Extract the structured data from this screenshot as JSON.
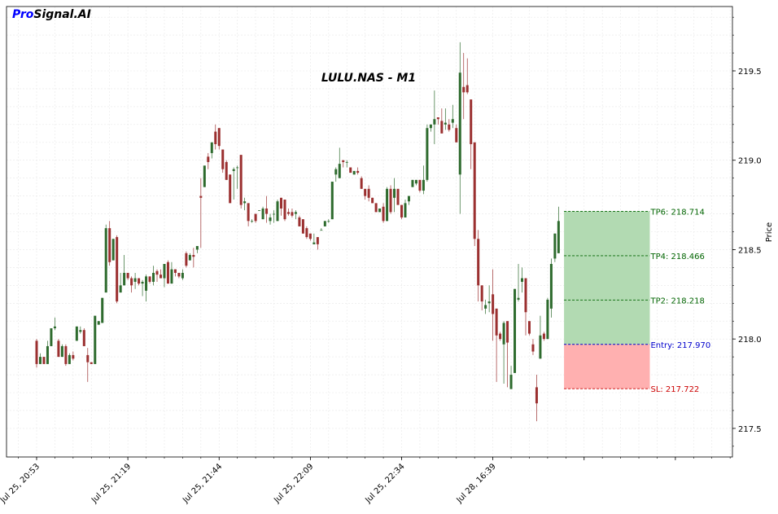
{
  "brand": {
    "part1": "Pro",
    "part2": "Signal.AI"
  },
  "chart_data": {
    "type": "candlestick",
    "title": "LULU.NAS - M1",
    "ylabel": "Price",
    "xlabel": "",
    "ylim": [
      217.34,
      219.86
    ],
    "y_ticks": [
      217.5,
      218.0,
      218.5,
      219.0,
      219.5
    ],
    "y_tick_labels": [
      "217.5",
      "218.0",
      "218.5",
      "219.0",
      "219.5"
    ],
    "x_tick_labels": [
      "Jul 25, 20:53",
      "Jul 25, 21:19",
      "Jul 25, 21:44",
      "Jul 25, 22:09",
      "Jul 25, 22:34",
      "Jul 28, 16:39"
    ],
    "x_tick_indices": [
      0,
      25,
      50,
      75,
      100,
      125
    ],
    "grid": true,
    "colors": {
      "up": "#2e6b2e",
      "down": "#9b3030",
      "tp_zone": "#b2dab2",
      "sl_zone": "#ffb0b0",
      "tp_line": "#006400",
      "entry_line": "#0000cc",
      "sl_line": "#cc0000"
    },
    "candles": [
      [
        217.99,
        218.0,
        217.84,
        217.86
      ],
      [
        217.86,
        217.92,
        217.86,
        217.9
      ],
      [
        217.9,
        217.9,
        217.86,
        217.86
      ],
      [
        217.86,
        217.99,
        217.86,
        217.96
      ],
      [
        217.96,
        218.06,
        217.96,
        218.06
      ],
      [
        218.06,
        218.12,
        218.05,
        218.07
      ],
      [
        217.99,
        218.0,
        217.9,
        217.9
      ],
      [
        217.9,
        217.97,
        217.9,
        217.96
      ],
      [
        217.96,
        217.97,
        217.85,
        217.86
      ],
      [
        217.86,
        217.92,
        217.86,
        217.91
      ],
      [
        217.91,
        217.93,
        217.88,
        217.89
      ],
      [
        217.99,
        218.07,
        217.99,
        218.07
      ],
      [
        218.04,
        218.07,
        218.03,
        218.05
      ],
      [
        218.05,
        218.06,
        217.96,
        217.96
      ],
      [
        217.91,
        217.95,
        217.76,
        217.87
      ],
      [
        217.87,
        217.87,
        217.86,
        217.86
      ],
      [
        217.86,
        218.13,
        217.86,
        218.13
      ],
      [
        218.08,
        218.1,
        218.08,
        218.1
      ],
      [
        218.09,
        218.23,
        218.09,
        218.23
      ],
      [
        218.26,
        218.64,
        218.26,
        218.62
      ],
      [
        218.62,
        218.66,
        218.41,
        218.43
      ],
      [
        218.44,
        218.56,
        218.44,
        218.56
      ],
      [
        218.57,
        218.58,
        218.2,
        218.21
      ],
      [
        218.26,
        218.37,
        218.26,
        218.3
      ],
      [
        218.3,
        218.47,
        218.3,
        218.37
      ],
      [
        218.37,
        218.37,
        218.33,
        218.34
      ],
      [
        218.34,
        218.35,
        218.26,
        218.3
      ],
      [
        218.32,
        218.37,
        218.28,
        218.34
      ],
      [
        218.34,
        218.34,
        218.3,
        218.31
      ],
      [
        218.31,
        218.33,
        218.24,
        218.32
      ],
      [
        218.27,
        218.36,
        218.21,
        218.35
      ],
      [
        218.35,
        218.35,
        218.31,
        218.32
      ],
      [
        218.32,
        218.41,
        218.3,
        218.37
      ],
      [
        218.38,
        218.39,
        218.32,
        218.36
      ],
      [
        218.36,
        218.39,
        218.34,
        218.34
      ],
      [
        218.34,
        218.42,
        218.29,
        218.42
      ],
      [
        218.43,
        218.44,
        218.31,
        218.31
      ],
      [
        218.31,
        218.43,
        218.31,
        218.39
      ],
      [
        218.39,
        218.39,
        218.35,
        218.37
      ],
      [
        218.37,
        218.37,
        218.34,
        218.35
      ],
      [
        218.34,
        218.39,
        218.33,
        218.37
      ],
      [
        218.48,
        218.49,
        218.4,
        218.41
      ],
      [
        218.44,
        218.48,
        218.44,
        218.47
      ],
      [
        218.47,
        218.51,
        218.4,
        218.46
      ],
      [
        218.5,
        218.52,
        218.48,
        218.52
      ],
      [
        218.8,
        218.9,
        218.51,
        218.79
      ],
      [
        218.85,
        218.97,
        218.85,
        218.97
      ],
      [
        219.02,
        219.04,
        218.95,
        218.99
      ],
      [
        219.04,
        219.1,
        219.01,
        219.1
      ],
      [
        219.16,
        219.2,
        219.06,
        219.09
      ],
      [
        219.18,
        219.18,
        219.06,
        219.08
      ],
      [
        219.06,
        219.06,
        218.93,
        218.95
      ],
      [
        218.99,
        219.0,
        218.89,
        218.89
      ],
      [
        218.92,
        218.92,
        218.77,
        218.76
      ],
      [
        218.94,
        218.96,
        218.78,
        218.95
      ],
      [
        218.96,
        218.97,
        218.84,
        218.96
      ],
      [
        219.03,
        219.03,
        218.73,
        218.75
      ],
      [
        218.76,
        218.79,
        218.72,
        218.77
      ],
      [
        218.76,
        218.76,
        218.63,
        218.66
      ],
      [
        218.66,
        218.67,
        218.65,
        218.66
      ],
      [
        218.7,
        218.7,
        218.65,
        218.66
      ],
      [
        218.72,
        218.72,
        218.72,
        218.72
      ],
      [
        218.67,
        218.74,
        218.67,
        218.73
      ],
      [
        218.73,
        218.8,
        218.65,
        218.7
      ],
      [
        218.66,
        218.7,
        218.64,
        218.68
      ],
      [
        218.7,
        218.72,
        218.65,
        218.7
      ],
      [
        218.66,
        218.78,
        218.66,
        218.77
      ],
      [
        218.79,
        218.79,
        218.69,
        218.73
      ],
      [
        218.78,
        218.78,
        218.66,
        218.67
      ],
      [
        218.71,
        218.73,
        218.69,
        218.7
      ],
      [
        218.71,
        218.73,
        218.68,
        218.69
      ],
      [
        218.7,
        218.72,
        218.67,
        218.71
      ],
      [
        218.68,
        218.69,
        218.63,
        218.63
      ],
      [
        218.67,
        218.67,
        218.59,
        218.59
      ],
      [
        218.62,
        218.63,
        218.56,
        218.57
      ],
      [
        218.59,
        218.59,
        218.55,
        218.56
      ],
      [
        218.53,
        218.59,
        218.53,
        218.54
      ],
      [
        218.57,
        218.57,
        218.5,
        218.53
      ],
      [
        218.61,
        218.62,
        218.61,
        218.61
      ],
      [
        218.63,
        218.66,
        218.63,
        218.66
      ],
      [
        218.66,
        218.67,
        218.65,
        218.66
      ],
      [
        218.67,
        218.88,
        218.67,
        218.88
      ],
      [
        218.92,
        218.96,
        218.88,
        218.95
      ],
      [
        218.9,
        219.07,
        218.9,
        218.98
      ],
      [
        219.0,
        219.0,
        218.96,
        218.99
      ],
      [
        218.99,
        219.0,
        218.96,
        218.99
      ],
      [
        218.96,
        218.96,
        218.93,
        218.93
      ],
      [
        218.92,
        218.94,
        218.92,
        218.94
      ],
      [
        218.94,
        218.96,
        218.92,
        218.93
      ],
      [
        218.9,
        218.91,
        218.84,
        218.84
      ],
      [
        218.84,
        218.84,
        218.78,
        218.8
      ],
      [
        218.84,
        218.86,
        218.77,
        218.79
      ],
      [
        218.79,
        218.79,
        218.76,
        218.76
      ],
      [
        218.76,
        218.76,
        218.71,
        218.71
      ],
      [
        218.71,
        218.73,
        218.71,
        218.73
      ],
      [
        218.74,
        218.76,
        218.65,
        218.66
      ],
      [
        218.66,
        218.85,
        218.66,
        218.84
      ],
      [
        218.84,
        218.86,
        218.7,
        218.71
      ],
      [
        218.79,
        218.9,
        218.71,
        218.84
      ],
      [
        218.84,
        218.84,
        218.75,
        218.75
      ],
      [
        218.75,
        218.75,
        218.67,
        218.68
      ],
      [
        218.68,
        218.78,
        218.68,
        218.76
      ],
      [
        218.77,
        218.8,
        218.75,
        218.8
      ],
      [
        218.85,
        218.89,
        218.85,
        218.89
      ],
      [
        218.87,
        218.89,
        218.86,
        218.89
      ],
      [
        218.89,
        218.89,
        218.82,
        218.83
      ],
      [
        218.83,
        218.97,
        218.81,
        218.89
      ],
      [
        218.89,
        219.2,
        218.88,
        219.18
      ],
      [
        219.18,
        219.2,
        219.16,
        219.2
      ],
      [
        219.2,
        219.39,
        219.09,
        219.23
      ],
      [
        219.24,
        219.24,
        219.2,
        219.23
      ],
      [
        219.22,
        219.29,
        219.15,
        219.15
      ],
      [
        219.2,
        219.29,
        219.17,
        219.21
      ],
      [
        219.2,
        219.23,
        219.16,
        219.17
      ],
      [
        219.21,
        219.31,
        219.18,
        219.23
      ],
      [
        219.18,
        219.2,
        219.12,
        219.1
      ],
      [
        218.92,
        219.66,
        218.7,
        219.49
      ],
      [
        219.41,
        219.6,
        219.23,
        219.38
      ],
      [
        219.42,
        219.57,
        219.37,
        219.38
      ],
      [
        219.34,
        219.34,
        218.95,
        219.09
      ],
      [
        219.1,
        219.1,
        218.52,
        218.56
      ],
      [
        218.56,
        218.61,
        218.21,
        218.3
      ],
      [
        218.3,
        218.3,
        218.16,
        218.21
      ],
      [
        218.17,
        218.22,
        218.14,
        218.19
      ],
      [
        218.2,
        218.3,
        218.15,
        218.21
      ],
      [
        218.25,
        218.39,
        217.99,
        218.14
      ],
      [
        218.17,
        218.17,
        217.76,
        218.02
      ],
      [
        218.03,
        218.04,
        217.99,
        218.0
      ],
      [
        217.97,
        218.1,
        217.75,
        218.09
      ],
      [
        218.1,
        218.1,
        217.73,
        217.98
      ],
      [
        217.72,
        217.85,
        217.72,
        217.8
      ],
      [
        217.81,
        218.28,
        217.81,
        218.28
      ],
      [
        218.22,
        218.42,
        218.21,
        218.23
      ],
      [
        218.32,
        218.4,
        218.26,
        218.34
      ],
      [
        218.34,
        218.34,
        218.02,
        218.15
      ],
      [
        218.1,
        218.1,
        218.02,
        218.03
      ],
      [
        217.97,
        218.0,
        217.91,
        217.93
      ],
      [
        217.73,
        217.8,
        217.54,
        217.64
      ],
      [
        217.89,
        218.13,
        217.89,
        218.02
      ],
      [
        218.03,
        218.04,
        217.99,
        218.0
      ],
      [
        218.0,
        218.23,
        218.0,
        218.22
      ],
      [
        218.17,
        218.45,
        218.12,
        218.42
      ],
      [
        218.45,
        218.59,
        218.43,
        218.59
      ],
      [
        218.48,
        218.74,
        218.48,
        218.66
      ]
    ],
    "levels": [
      {
        "name": "TP6",
        "label": "TP6: 218.714",
        "value": 218.714,
        "kind": "tp"
      },
      {
        "name": "TP4",
        "label": "TP4: 218.466",
        "value": 218.466,
        "kind": "tp"
      },
      {
        "name": "TP2",
        "label": "TP2: 218.218",
        "value": 218.218,
        "kind": "tp"
      },
      {
        "name": "Entry",
        "label": "Entry: 217.970",
        "value": 217.97,
        "kind": "entry"
      },
      {
        "name": "SL",
        "label": "SL: 217.722",
        "value": 217.722,
        "kind": "sl"
      }
    ]
  }
}
